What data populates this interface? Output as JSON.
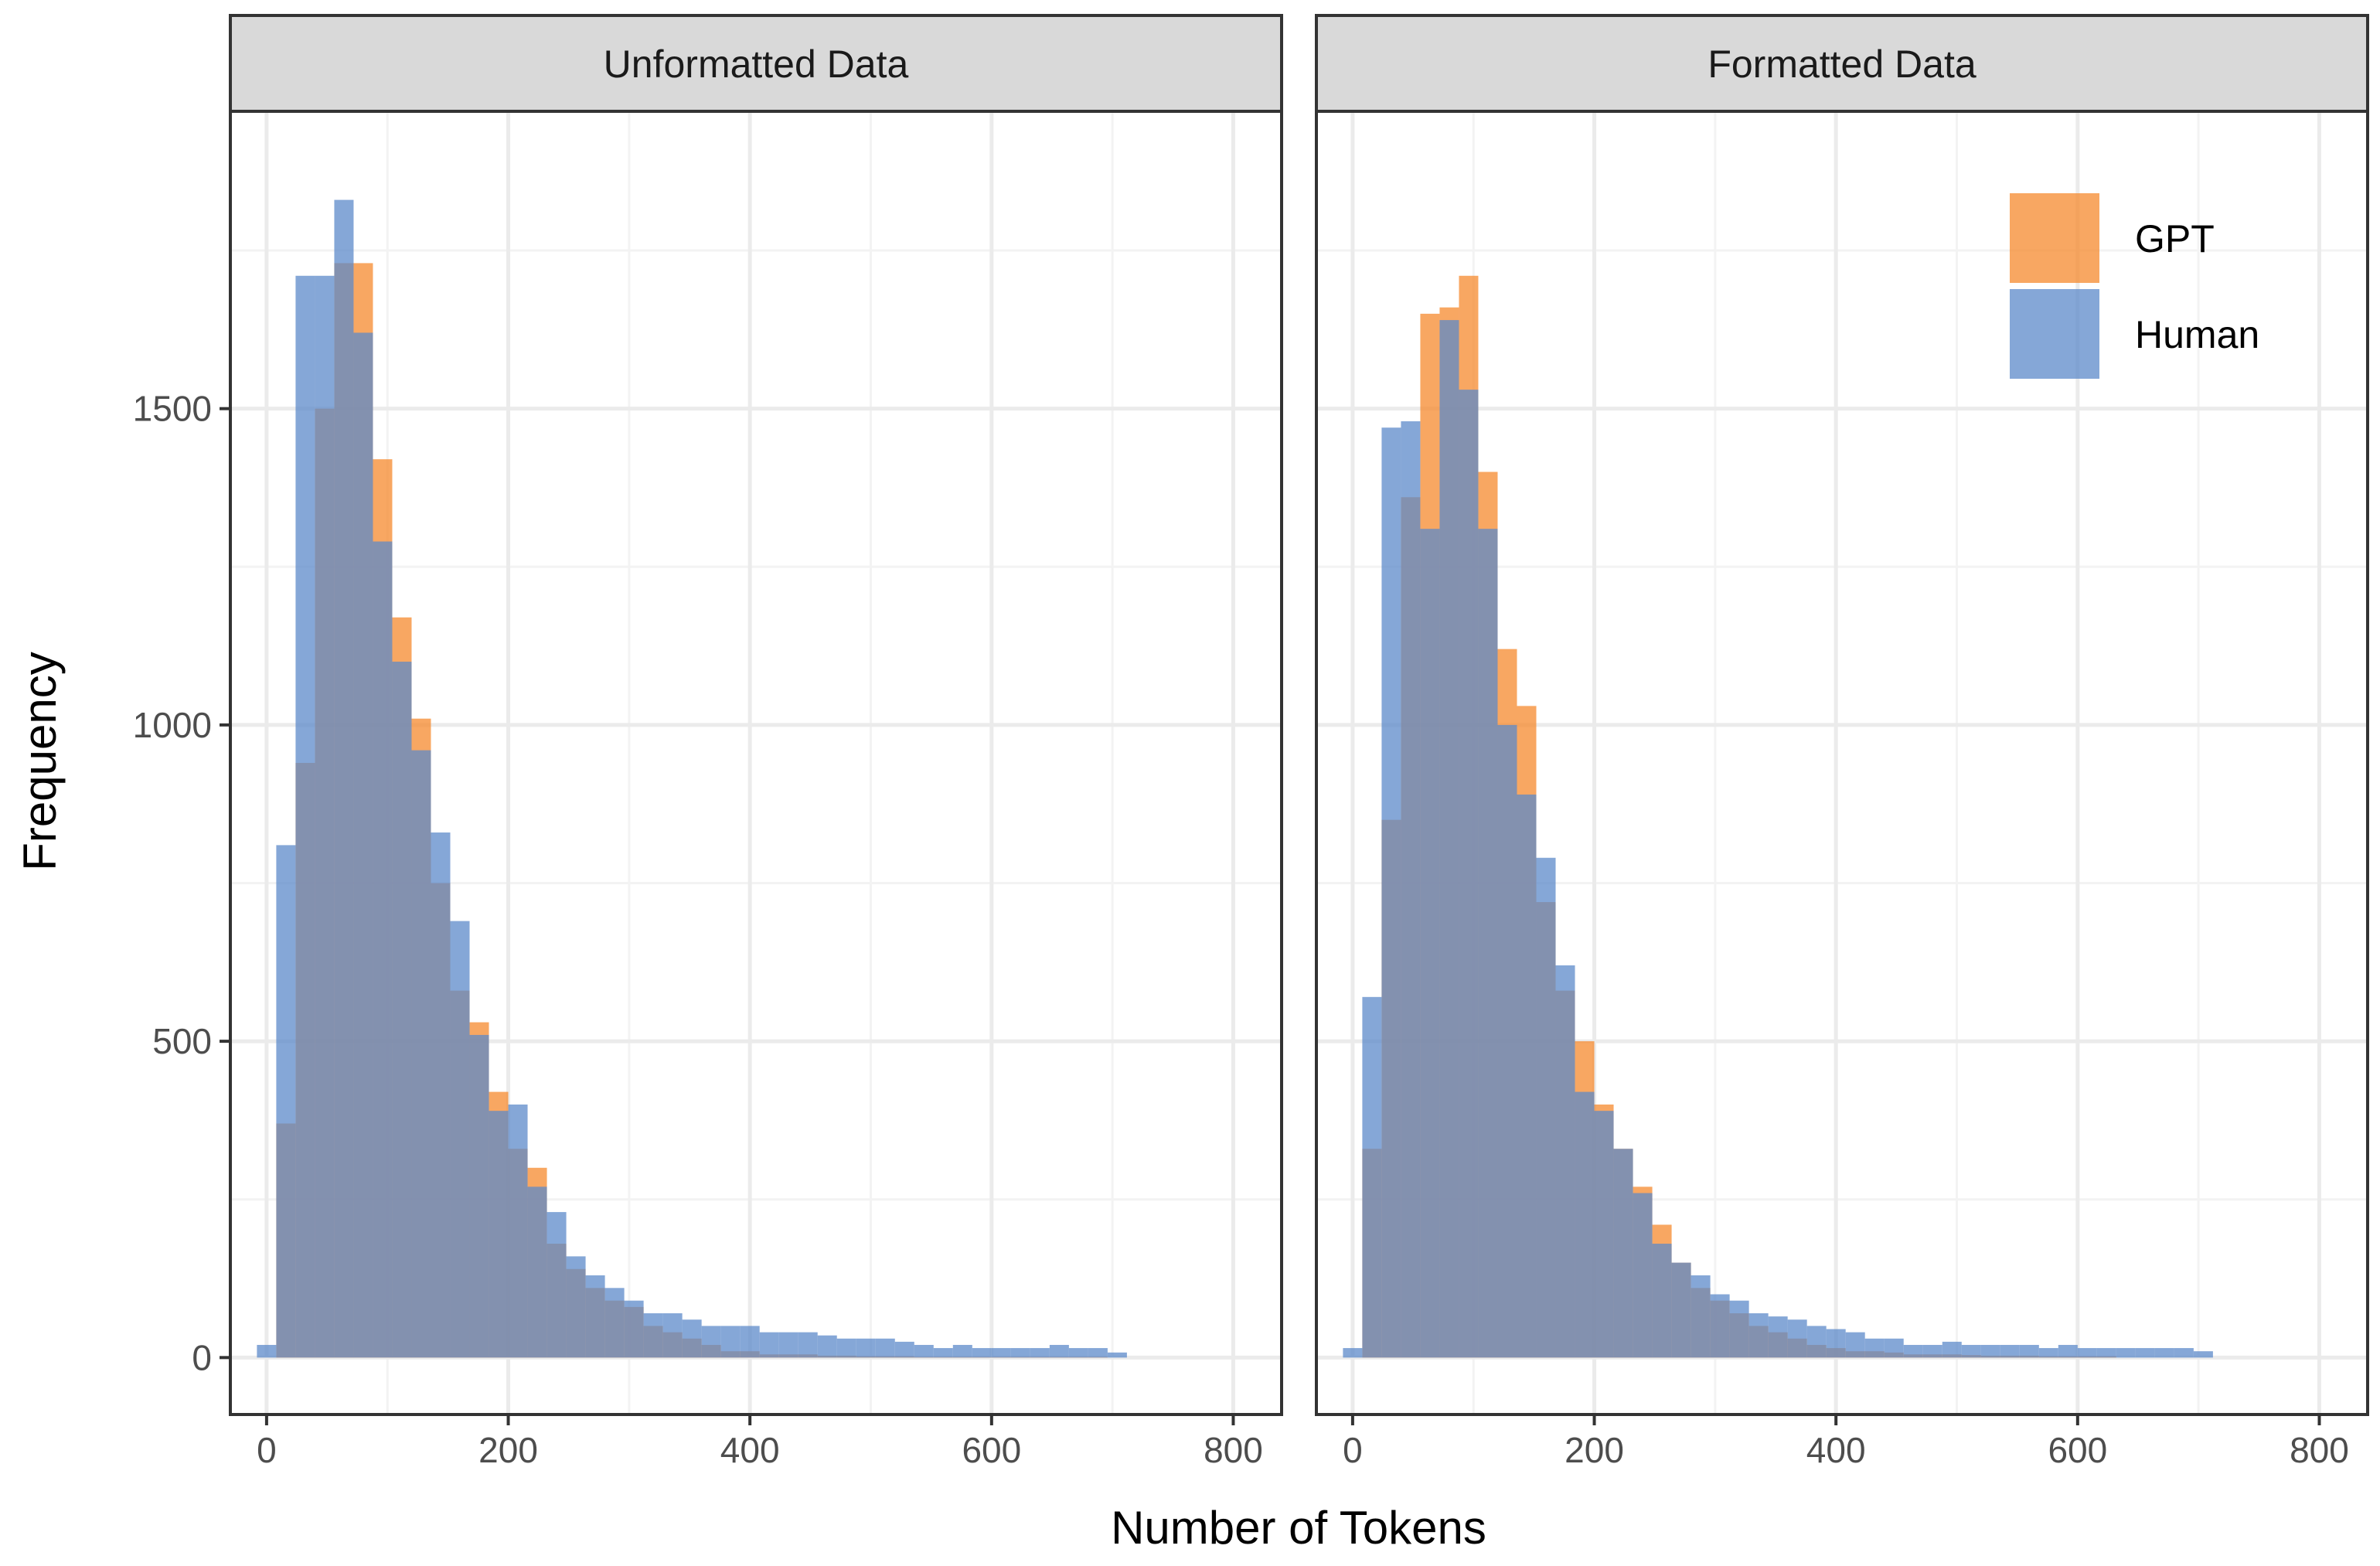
{
  "colors": {
    "gpt": "#F58A2E",
    "human": "#5C8AC9",
    "strip_bg": "#D9D9D9",
    "grid_major": "#EBEBEB",
    "grid_minor": "#F3F3F3",
    "panel_border": "#333333"
  },
  "labels": {
    "xlabel": "Number of Tokens",
    "ylabel": "Frequency"
  },
  "legend": {
    "position": "top-right (inside Formatted Data panel)",
    "items": [
      {
        "key": "gpt",
        "label": "GPT"
      },
      {
        "key": "human",
        "label": "Human"
      }
    ]
  },
  "chart_data": {
    "type": "histogram",
    "bin_width": 16,
    "bar_opacity": 0.75,
    "x_ticks": [
      0,
      200,
      400,
      600,
      800
    ],
    "y_ticks": [
      0,
      500,
      1000,
      1500
    ],
    "xlim": [
      -30,
      840
    ],
    "ylim": [
      -90,
      1970
    ],
    "grid": true,
    "panels": [
      {
        "title": "Unformatted Data",
        "bin_start": -8,
        "series": [
          {
            "name": "GPT",
            "key": "gpt",
            "values": [
              0,
              370,
              940,
              1500,
              1730,
              1730,
              1420,
              1170,
              1010,
              750,
              580,
              530,
              420,
              330,
              300,
              180,
              140,
              110,
              90,
              80,
              50,
              40,
              30,
              20,
              10,
              10,
              5,
              5,
              5,
              3,
              3,
              2,
              2,
              2,
              1,
              1,
              1,
              1,
              1,
              1,
              1,
              1,
              1,
              1,
              0,
              0,
              0,
              0,
              0,
              0
            ]
          },
          {
            "name": "Human",
            "key": "human",
            "values": [
              20,
              810,
              1710,
              1710,
              1830,
              1620,
              1290,
              1100,
              960,
              830,
              690,
              510,
              390,
              400,
              270,
              230,
              160,
              130,
              110,
              90,
              70,
              70,
              60,
              50,
              50,
              50,
              40,
              40,
              40,
              35,
              30,
              30,
              30,
              25,
              20,
              15,
              20,
              15,
              15,
              15,
              15,
              20,
              15,
              15,
              8,
              0,
              0,
              0,
              0,
              0
            ]
          }
        ]
      },
      {
        "title": "Formatted Data",
        "bin_start": -8,
        "series": [
          {
            "name": "GPT",
            "key": "gpt",
            "values": [
              0,
              330,
              850,
              1360,
              1650,
              1660,
              1710,
              1400,
              1120,
              1030,
              720,
              580,
              500,
              400,
              330,
              270,
              210,
              150,
              110,
              90,
              70,
              50,
              40,
              30,
              20,
              15,
              10,
              10,
              8,
              5,
              5,
              5,
              4,
              3,
              3,
              3,
              2,
              2,
              2,
              2,
              0,
              0,
              0,
              0,
              0,
              0,
              0,
              0,
              0,
              0
            ]
          },
          {
            "name": "Human",
            "key": "human",
            "values": [
              15,
              570,
              1470,
              1480,
              1310,
              1640,
              1530,
              1310,
              1000,
              890,
              790,
              620,
              420,
              390,
              330,
              260,
              180,
              150,
              130,
              100,
              90,
              70,
              65,
              60,
              50,
              45,
              40,
              30,
              30,
              20,
              20,
              25,
              20,
              20,
              20,
              20,
              15,
              20,
              15,
              15,
              15,
              15,
              15,
              15,
              10,
              0,
              0,
              0,
              0,
              0
            ]
          }
        ]
      }
    ]
  }
}
